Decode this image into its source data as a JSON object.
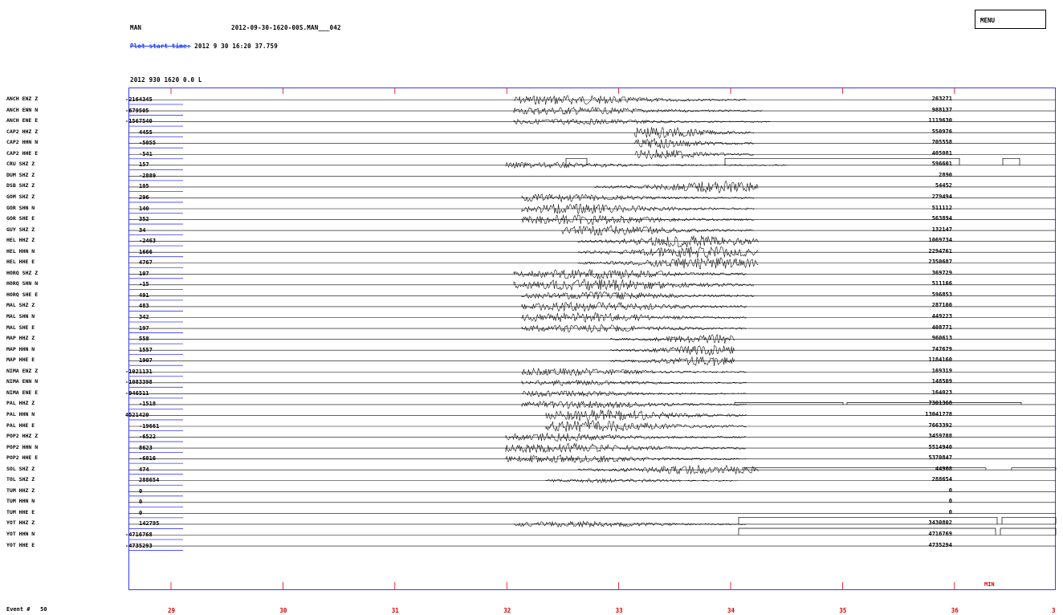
{
  "header": {
    "station_code": "MAN",
    "file_name": "2012-09-30-1620-00S.MAN___042",
    "plot_start_label": "Plot start time:",
    "plot_start_value": "2012  9 30   16:20  37.759",
    "subtitle": "2012  930 1620  0.0 L"
  },
  "menu": {
    "label": "MENU"
  },
  "event": {
    "label": "Event #",
    "value": "50"
  },
  "min_label": "MIN",
  "time_axis": {
    "minute_labels": [
      "29",
      "30",
      "31",
      "32",
      "33",
      "34",
      "35",
      "36",
      "3"
    ]
  },
  "channels": [
    {
      "name": "ANCH  ENZ Z",
      "left_value": "",
      "right_value": "263271"
    },
    {
      "name": "ANCH  ENN N",
      "left_value": "-2164345",
      "right_value": "988137"
    },
    {
      "name": "ANCH  ENE E",
      "left_value": "-679505",
      "right_value": "1119630"
    },
    {
      "name": "CAP2  HHZ Z",
      "left_value": "-1567540",
      "right_value": "550976"
    },
    {
      "name": "CAP2  HHN N",
      "left_value": "4455",
      "right_value": "705558"
    },
    {
      "name": "CAP2  HHE E",
      "left_value": "-5055",
      "right_value": "405081"
    },
    {
      "name": "CRU   SHZ Z",
      "left_value": "-541",
      "right_value": "596601"
    },
    {
      "name": "DUM   SHZ Z",
      "left_value": "157",
      "right_value": "2890"
    },
    {
      "name": "DSB   SHZ Z",
      "left_value": "-2889",
      "right_value": "54452"
    },
    {
      "name": "GOM   SHZ Z",
      "left_value": "105",
      "right_value": "279494"
    },
    {
      "name": "GOR   SHN N",
      "left_value": "296",
      "right_value": "511112"
    },
    {
      "name": "GOR   SHE E",
      "left_value": "140",
      "right_value": "563894"
    },
    {
      "name": "GUY   SHZ Z",
      "left_value": "352",
      "right_value": "132147"
    },
    {
      "name": "HEL   HHZ Z",
      "left_value": "34",
      "right_value": "1069734"
    },
    {
      "name": "HEL   HHN N",
      "left_value": "-2463",
      "right_value": "2294761"
    },
    {
      "name": "HEL   HHE E",
      "left_value": "1666",
      "right_value": "2350687"
    },
    {
      "name": "HORQ  SHZ Z",
      "left_value": "4767",
      "right_value": "369729"
    },
    {
      "name": "HORQ  SHN N",
      "left_value": "107",
      "right_value": "511166"
    },
    {
      "name": "HORQ  SHE E",
      "left_value": "-15",
      "right_value": "596853"
    },
    {
      "name": "MAL   SHZ Z",
      "left_value": "491",
      "right_value": "287100"
    },
    {
      "name": "MAL   SHN N",
      "left_value": "483",
      "right_value": "449223"
    },
    {
      "name": "MAL   SHE E",
      "left_value": "342",
      "right_value": "408771"
    },
    {
      "name": "MAP   HHZ Z",
      "left_value": "197",
      "right_value": "960613"
    },
    {
      "name": "MAP   HHN N",
      "left_value": "558",
      "right_value": "747679"
    },
    {
      "name": "MAP   HHE E",
      "left_value": "1557",
      "right_value": "1184160"
    },
    {
      "name": "NIMA  ENZ Z",
      "left_value": "1907",
      "right_value": "169319"
    },
    {
      "name": "NIMA  ENN N",
      "left_value": "-1021131",
      "right_value": "148509"
    },
    {
      "name": "NIMA  ENE E",
      "left_value": "-1083398",
      "right_value": "164023"
    },
    {
      "name": "PAL   HHZ Z",
      "left_value": "-946511",
      "right_value": "7301368"
    },
    {
      "name": "PAL   HHN N",
      "left_value": "-1518",
      "right_value": "13041778"
    },
    {
      "name": "PAL   HHE E",
      "left_value": "4521420",
      "right_value": "7663392"
    },
    {
      "name": "POP2  HHZ Z",
      "left_value": "-19661",
      "right_value": "3459788"
    },
    {
      "name": "POP2  HHN N",
      "left_value": "-6522",
      "right_value": "5514940"
    },
    {
      "name": "POP2  HHE E",
      "left_value": "8623",
      "right_value": "5370847"
    },
    {
      "name": "SOL   SHZ Z",
      "left_value": "-6816",
      "right_value": "44908"
    },
    {
      "name": "TOL   SHZ Z",
      "left_value": "474",
      "right_value": "288654"
    },
    {
      "name": "TUM   HHZ Z",
      "left_value": "288654",
      "right_value": "0"
    },
    {
      "name": "TUM   HHN N",
      "left_value": "0",
      "right_value": "0"
    },
    {
      "name": "TUM   HHE E",
      "left_value": "0",
      "right_value": "0"
    },
    {
      "name": "YOT   HHZ Z",
      "left_value": "0",
      "right_value": "3430802"
    },
    {
      "name": "YOT   HHN N",
      "left_value": "142795",
      "right_value": "4716769"
    },
    {
      "name": "YOT   HHE E",
      "left_value": "-4716768",
      "right_value": "4735294"
    }
  ],
  "extra_left_value": "-4735293",
  "colors": {
    "frame": "#3a3aff",
    "tick": "#e00000",
    "trace": "#000000",
    "header_link": "#1a3cff"
  }
}
